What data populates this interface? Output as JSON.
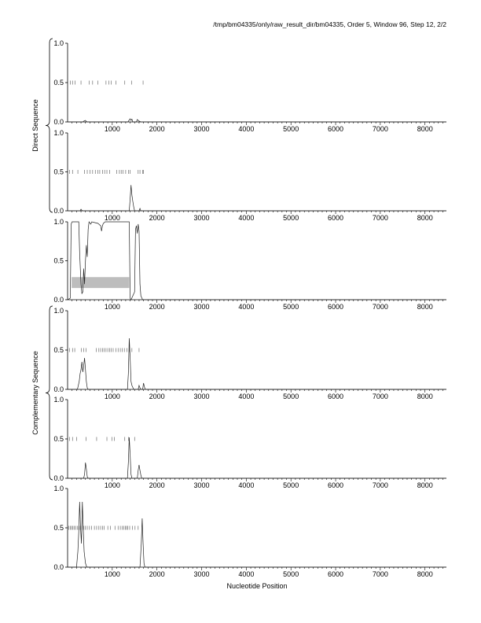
{
  "header": "/tmp/bm04335/only/raw_result_dir/bm04335, Order 5, Window 96, Step 12, 2/2",
  "chart_data": {
    "type": "line",
    "xlabel": "Nucleotide Position",
    "x_ticks": [
      1000,
      2000,
      3000,
      4000,
      5000,
      6000,
      7000,
      8000
    ],
    "xlim": [
      0,
      8480
    ],
    "y_ticks": [
      "0.0",
      "0.5",
      "1.0"
    ],
    "ylim": [
      0,
      1
    ],
    "groups": [
      {
        "label": "Direct Sequence",
        "panels": [
          1,
          2
        ]
      },
      {
        "label": "Complementary Sequence",
        "panels": [
          4,
          5
        ]
      }
    ],
    "panels": [
      {
        "id": 1,
        "ticks_at_half": [
          60,
          110,
          170,
          300,
          480,
          560,
          680,
          860,
          920,
          980,
          1080,
          1280,
          1430,
          1690
        ],
        "series": [
          [
            0,
            0
          ],
          [
            340,
            0
          ],
          [
            360,
            0.01
          ],
          [
            400,
            0.02
          ],
          [
            420,
            0.005
          ],
          [
            440,
            0
          ],
          [
            1350,
            0
          ],
          [
            1400,
            0.04
          ],
          [
            1420,
            0.02
          ],
          [
            1440,
            0.035
          ],
          [
            1460,
            0
          ],
          [
            1540,
            0
          ],
          [
            1560,
            0.03
          ],
          [
            1580,
            0.02
          ],
          [
            1600,
            0.01
          ],
          [
            1640,
            0
          ],
          [
            8480,
            0
          ]
        ]
      },
      {
        "id": 2,
        "ticks_at_half": [
          40,
          110,
          230,
          380,
          440,
          500,
          560,
          620,
          680,
          720,
          780,
          830,
          880,
          940,
          1100,
          1160,
          1200,
          1240,
          1300,
          1360,
          1400,
          1580,
          1620,
          1680,
          1700
        ],
        "series": [
          [
            0,
            0
          ],
          [
            280,
            0
          ],
          [
            300,
            0.02
          ],
          [
            320,
            0.005
          ],
          [
            340,
            0
          ],
          [
            1380,
            0
          ],
          [
            1400,
            0.15
          ],
          [
            1420,
            0.33
          ],
          [
            1440,
            0.2
          ],
          [
            1460,
            0.12
          ],
          [
            1480,
            0.05
          ],
          [
            1500,
            0
          ],
          [
            1600,
            0
          ],
          [
            1620,
            0.03
          ],
          [
            1640,
            0
          ],
          [
            8480,
            0
          ]
        ]
      },
      {
        "id": 3,
        "shaded_band": {
          "x": [
            90,
            1380
          ],
          "y": [
            0.15,
            0.29
          ]
        },
        "series": [
          [
            0,
            0
          ],
          [
            60,
            0.02
          ],
          [
            80,
            0.97
          ],
          [
            100,
            1.0
          ],
          [
            250,
            1.0
          ],
          [
            270,
            0.6
          ],
          [
            300,
            0.2
          ],
          [
            320,
            0.08
          ],
          [
            340,
            0.1
          ],
          [
            360,
            0.4
          ],
          [
            380,
            0.2
          ],
          [
            400,
            0.5
          ],
          [
            420,
            0.7
          ],
          [
            440,
            0.55
          ],
          [
            460,
            0.9
          ],
          [
            480,
            1.0
          ],
          [
            520,
            0.97
          ],
          [
            540,
            1.0
          ],
          [
            680,
            0.98
          ],
          [
            700,
            0.97
          ],
          [
            740,
            0.95
          ],
          [
            760,
            0.88
          ],
          [
            780,
            0.95
          ],
          [
            800,
            0.98
          ],
          [
            840,
            1.0
          ],
          [
            1380,
            1.0
          ],
          [
            1400,
            0.02
          ],
          [
            1420,
            0
          ],
          [
            1460,
            0.05
          ],
          [
            1500,
            0.1
          ],
          [
            1520,
            0.9
          ],
          [
            1540,
            0.95
          ],
          [
            1560,
            0.85
          ],
          [
            1580,
            0.97
          ],
          [
            1600,
            0.88
          ],
          [
            1620,
            0.2
          ],
          [
            1640,
            0.05
          ],
          [
            1680,
            0
          ],
          [
            8480,
            0
          ]
        ]
      },
      {
        "id": 4,
        "ticks_at_half": [
          40,
          110,
          160,
          310,
          360,
          410,
          640,
          700,
          740,
          780,
          820,
          860,
          900,
          940,
          980,
          1020,
          1080,
          1130,
          1180,
          1220,
          1270,
          1330,
          1380,
          1440,
          1600
        ],
        "series": [
          [
            0,
            0
          ],
          [
            220,
            0
          ],
          [
            260,
            0.1
          ],
          [
            280,
            0.2
          ],
          [
            300,
            0.25
          ],
          [
            320,
            0.35
          ],
          [
            340,
            0.22
          ],
          [
            360,
            0.3
          ],
          [
            380,
            0.4
          ],
          [
            400,
            0.25
          ],
          [
            420,
            0.1
          ],
          [
            440,
            0.02
          ],
          [
            460,
            0
          ],
          [
            1340,
            0
          ],
          [
            1360,
            0.2
          ],
          [
            1380,
            0.65
          ],
          [
            1400,
            0.4
          ],
          [
            1420,
            0.1
          ],
          [
            1440,
            0.05
          ],
          [
            1480,
            0
          ],
          [
            1580,
            0
          ],
          [
            1600,
            0.05
          ],
          [
            1620,
            0.02
          ],
          [
            1640,
            0
          ],
          [
            1680,
            0
          ],
          [
            1700,
            0.08
          ],
          [
            1720,
            0.03
          ],
          [
            1740,
            0
          ],
          [
            8480,
            0
          ]
        ]
      },
      {
        "id": 5,
        "ticks_at_half": [
          40,
          110,
          200,
          410,
          650,
          880,
          990,
          1050,
          1280,
          1360,
          1500
        ],
        "series": [
          [
            0,
            0
          ],
          [
            360,
            0
          ],
          [
            380,
            0.05
          ],
          [
            400,
            0.2
          ],
          [
            420,
            0.12
          ],
          [
            440,
            0.02
          ],
          [
            460,
            0
          ],
          [
            1340,
            0
          ],
          [
            1360,
            0.2
          ],
          [
            1380,
            0.52
          ],
          [
            1400,
            0.3
          ],
          [
            1420,
            0.05
          ],
          [
            1440,
            0
          ],
          [
            1560,
            0
          ],
          [
            1580,
            0.1
          ],
          [
            1600,
            0.17
          ],
          [
            1620,
            0.1
          ],
          [
            1640,
            0.04
          ],
          [
            1660,
            0
          ],
          [
            8480,
            0
          ]
        ]
      },
      {
        "id": 6,
        "ticks_at_half": [
          30,
          60,
          90,
          120,
          150,
          180,
          220,
          260,
          290,
          320,
          360,
          400,
          440,
          490,
          540,
          600,
          650,
          700,
          740,
          780,
          820,
          900,
          960,
          1060,
          1130,
          1180,
          1220,
          1260,
          1290,
          1320,
          1350,
          1390,
          1450,
          1510,
          1580
        ],
        "series": [
          [
            0,
            0
          ],
          [
            200,
            0
          ],
          [
            230,
            0.2
          ],
          [
            250,
            0.45
          ],
          [
            270,
            0.83
          ],
          [
            290,
            0.5
          ],
          [
            310,
            0.3
          ],
          [
            330,
            0.83
          ],
          [
            350,
            0.5
          ],
          [
            370,
            0.2
          ],
          [
            400,
            0.05
          ],
          [
            430,
            0
          ],
          [
            1620,
            0
          ],
          [
            1650,
            0.3
          ],
          [
            1670,
            0.62
          ],
          [
            1690,
            0.3
          ],
          [
            1710,
            0.05
          ],
          [
            1730,
            0
          ],
          [
            8480,
            0
          ]
        ]
      }
    ]
  }
}
